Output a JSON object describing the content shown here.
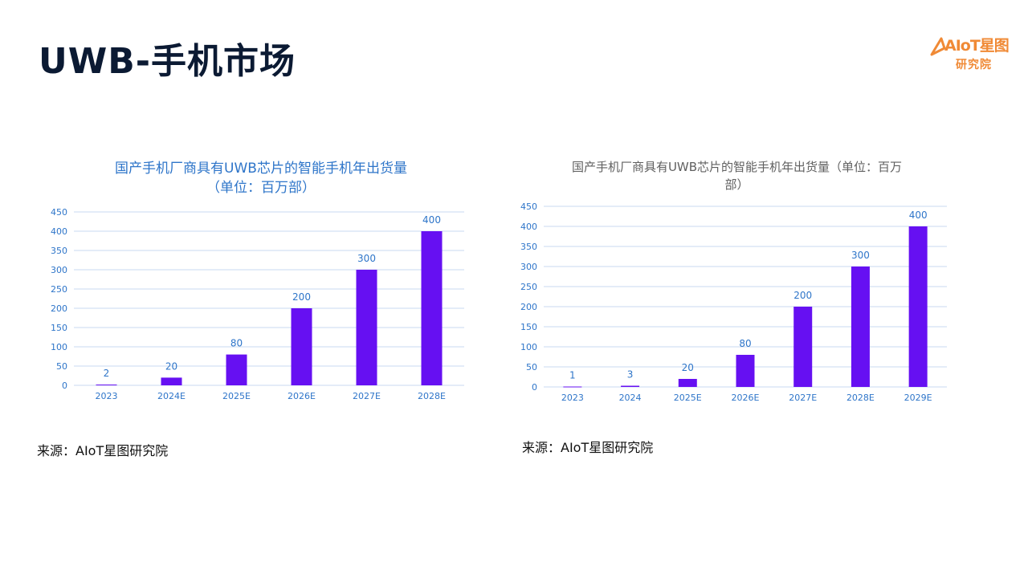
{
  "page": {
    "title": "UWB-手机市场"
  },
  "logo": {
    "brand": "AIoT星图",
    "sub": "研究院"
  },
  "sources": [
    "来源：AIoT星图研究院",
    "来源：AIoT星图研究院"
  ],
  "chart_data": [
    {
      "type": "bar",
      "title_line1": "国产手机厂商具有UWB芯片的智能手机年出货量",
      "title_line2": "（单位：百万部）",
      "categories": [
        "2023",
        "2024E",
        "2025E",
        "2026E",
        "2027E",
        "2028E"
      ],
      "values": [
        2,
        20,
        80,
        200,
        300,
        400
      ],
      "ylim": [
        0,
        450
      ],
      "yticks": [
        0,
        50,
        100,
        150,
        200,
        250,
        300,
        350,
        400,
        450
      ],
      "grid": true,
      "bar_color": "#6610f2"
    },
    {
      "type": "bar",
      "title_line1": "国产手机厂商具有UWB芯片的智能手机年出货量（单位：百万",
      "title_line2": "部）",
      "categories": [
        "2023",
        "2024",
        "2025E",
        "2026E",
        "2027E",
        "2028E",
        "2029E"
      ],
      "values": [
        1,
        3,
        20,
        80,
        200,
        300,
        400
      ],
      "ylim": [
        0,
        450
      ],
      "yticks": [
        0,
        50,
        100,
        150,
        200,
        250,
        300,
        350,
        400,
        450
      ],
      "grid": true,
      "bar_color": "#6610f2"
    }
  ]
}
